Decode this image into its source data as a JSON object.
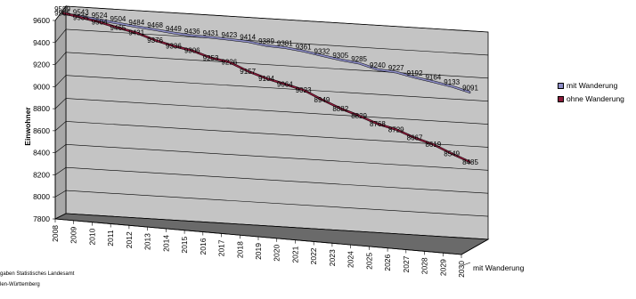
{
  "chart_data": {
    "type": "line",
    "ylabel": "Einwohner",
    "depth_axis_label": "mit Wanderung",
    "ylim": [
      7800,
      9600
    ],
    "yticks": [
      9600,
      9400,
      9200,
      9000,
      8800,
      8600,
      8400,
      8200,
      8000,
      7800
    ],
    "categories": [
      "2008",
      "2009",
      "2010",
      "2011",
      "2012",
      "2013",
      "2014",
      "2015",
      "2016",
      "2017",
      "2018",
      "2019",
      "2020",
      "2021",
      "2022",
      "2023",
      "2024",
      "2025",
      "2026",
      "2027",
      "2028",
      "2029",
      "2030"
    ],
    "series": [
      {
        "name": "mit Wanderung",
        "color": "#8e8ec8",
        "values": [
          9559,
          9543,
          9524,
          9504,
          9484,
          9468,
          9449,
          9436,
          9431,
          9423,
          9414,
          9389,
          9381,
          9361,
          9332,
          9305,
          9285,
          9240,
          9227,
          9192,
          9164,
          9133,
          9091
        ],
        "labels": [
          "9559",
          "9543",
          "9524",
          "9504",
          "9484",
          "9468",
          "9449",
          "9436",
          "9431",
          "9423",
          "9414",
          "9389",
          "9381",
          "9361",
          "9332",
          "9305",
          "9285",
          "9240",
          "9227",
          "9192",
          "9164",
          "9133",
          "9091"
        ]
      },
      {
        "name": "ohne Wanderung",
        "color": "#8b1a3a",
        "values": [
          9565,
          9535,
          9504,
          9465,
          9431,
          9376,
          9336,
          9306,
          9253,
          9226,
          9157,
          9104,
          9064,
          9023,
          8949,
          8882,
          8829,
          8768,
          8729,
          8667,
          8619,
          8549,
          8485
        ],
        "labels": [
          "9565",
          "9535",
          "9504",
          "9465",
          "9431",
          "9376",
          "9336",
          "9306",
          "9253",
          "9226",
          "9157",
          "9104",
          "9064",
          "9023",
          "8949",
          "8882",
          "8829",
          "8768",
          "8729",
          "8667",
          "8619",
          "8549",
          "8485"
        ]
      }
    ],
    "grid": true,
    "legend_position": "right"
  },
  "source_lines": [
    "gaben Statistisches Landesamt",
    "len-Württemberg"
  ]
}
